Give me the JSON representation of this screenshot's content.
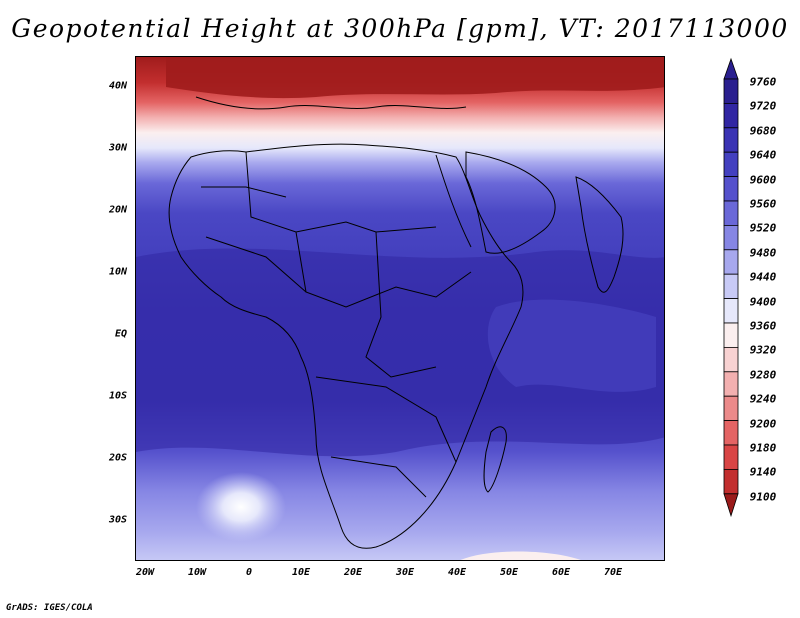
{
  "title": "Geopotential Height at 300hPa [gpm], VT: 2017113000",
  "credit": "GrADS: IGES/COLA",
  "map": {
    "lat_ticks": [
      "40N",
      "30N",
      "20N",
      "10N",
      "EQ",
      "10S",
      "20S",
      "30S"
    ],
    "lon_ticks": [
      "20W",
      "10W",
      "0",
      "10E",
      "20E",
      "30E",
      "40E",
      "50E",
      "60E",
      "70E"
    ]
  },
  "colorbar": {
    "levels": [
      "9760",
      "9720",
      "9680",
      "9640",
      "9600",
      "9560",
      "9520",
      "9480",
      "9440",
      "9400",
      "9360",
      "9320",
      "9280",
      "9240",
      "9200",
      "9180",
      "9140",
      "9100"
    ],
    "colors": [
      "#2a1f8f",
      "#3126a3",
      "#3a33b4",
      "#4340c0",
      "#5551cc",
      "#6a68d8",
      "#8686e4",
      "#a7a8ee",
      "#c8caf6",
      "#e6e8fb",
      "#fbefef",
      "#f8d2d2",
      "#f3b0b0",
      "#ec8a8a",
      "#e46464",
      "#d94545",
      "#c22e2e",
      "#a01c1c"
    ],
    "max_color": "#2a1f8f",
    "min_color": "#9a1a1a"
  }
}
